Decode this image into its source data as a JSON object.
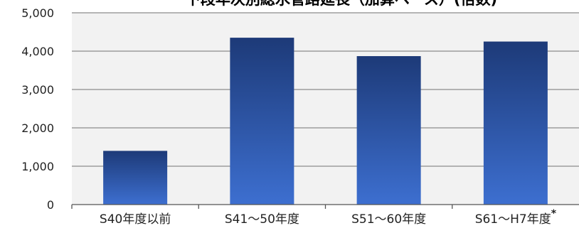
{
  "chart_data": {
    "type": "bar",
    "title": "下段年次別総水管路延長（加算ベース）(倍数)",
    "categories": [
      "S40年度以前",
      "S41～50年度",
      "S51～60年度",
      "S61～H7年度"
    ],
    "category_note": "*",
    "values": [
      1400,
      4350,
      3870,
      4250
    ],
    "ylim": [
      0,
      5000
    ],
    "yticks": [
      0,
      1000,
      2000,
      3000,
      4000,
      5000
    ],
    "ytick_labels": [
      "0",
      "1,000",
      "2,000",
      "3,000",
      "4,000",
      "5,000"
    ],
    "xlabel": "",
    "ylabel": "",
    "grid": true,
    "colors": {
      "plot_background": "#f2f2f2",
      "grid": "#8c8c8c",
      "bar_top": "#1d3a78",
      "bar_bottom": "#3d6fd0"
    }
  }
}
